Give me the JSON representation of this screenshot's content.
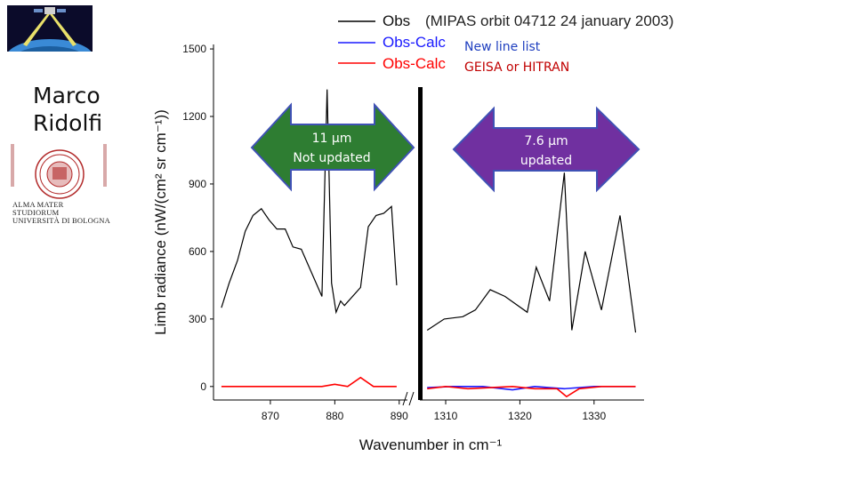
{
  "presenter": {
    "first": "Marco",
    "last": "Ridolfi"
  },
  "university": {
    "line1": "ALMA MATER STUDIORUM",
    "line2": "UNIVERSITÀ DI BOLOGNA"
  },
  "colors": {
    "obs": "#000000",
    "new": "#1a1aff",
    "old": "#ff0000",
    "green_arrow": "#2e7d32",
    "purple_arrow": "#7030a0"
  },
  "chart_data": {
    "type": "line",
    "title": "",
    "ylabel": "Limb radiance (nW/(cm² sr cm⁻¹))",
    "xlabel": "Wavenumber in cm⁻¹",
    "ylim": [
      -60,
      1520
    ],
    "yticks": [
      0,
      300,
      600,
      900,
      1200,
      1500
    ],
    "x_break": true,
    "left_panel": {
      "xlim": [
        862,
        891
      ],
      "xticks": [
        870,
        880,
        890
      ]
    },
    "right_panel": {
      "xlim": [
        1307,
        1336.5
      ],
      "xticks": [
        1310,
        1320,
        1330
      ]
    },
    "legend": {
      "position": "top-right",
      "entries": [
        {
          "label": "Obs",
          "extra": "(MIPAS orbit 04712 24 january 2003)",
          "extra_color": "#222222"
        },
        {
          "label": "Obs-Calc",
          "extra": "New line list",
          "extra_color": "#1f3fbf"
        },
        {
          "label": "Obs-Calc",
          "extra": "GEISA or HITRAN",
          "extra_color": "#c00000"
        }
      ]
    },
    "annotations": [
      {
        "text1": "11 µm",
        "text2": "Not updated"
      },
      {
        "text1": "7.6  µm",
        "text2": "updated"
      }
    ],
    "series": [
      {
        "name": "Obs",
        "panel": "left",
        "x": [
          862.4,
          863.6,
          864.9,
          866.1,
          867.3,
          868.6,
          869.8,
          871.0,
          872.3,
          873.5,
          874.8,
          878.0,
          878.8,
          879.5,
          880.2,
          880.9,
          881.5,
          884.0,
          885.2,
          886.4,
          887.6,
          888.8,
          889.6
        ],
        "y": [
          350,
          460,
          560,
          690,
          760,
          790,
          740,
          700,
          700,
          620,
          610,
          400,
          1320,
          460,
          330,
          380,
          360,
          440,
          710,
          760,
          770,
          800,
          450
        ]
      },
      {
        "name": "Obs",
        "panel": "right",
        "x": [
          1307.5,
          1309.8,
          1312.3,
          1314.0,
          1316.0,
          1318.0,
          1321.0,
          1322.2,
          1324.0,
          1326.0,
          1327.0,
          1328.8,
          1331.0,
          1333.5,
          1335.6
        ],
        "y": [
          250,
          300,
          310,
          340,
          430,
          400,
          330,
          530,
          380,
          950,
          250,
          600,
          340,
          760,
          240
        ]
      },
      {
        "name": "Obs-Calc (GEISA or HITRAN)",
        "panel": "left",
        "x": [
          862.4,
          866,
          870,
          874.8,
          878,
          880,
          882,
          884,
          886,
          888,
          889.6
        ],
        "y": [
          0,
          0,
          0,
          0,
          0,
          10,
          0,
          40,
          0,
          0,
          0
        ]
      },
      {
        "name": "Obs-Calc (GEISA or HITRAN)",
        "panel": "right",
        "x": [
          1307.5,
          1310,
          1313,
          1316,
          1319,
          1322,
          1325,
          1326.3,
          1328,
          1331,
          1335.6
        ],
        "y": [
          -10,
          0,
          -10,
          -5,
          0,
          -10,
          -10,
          -45,
          -10,
          0,
          0
        ]
      },
      {
        "name": "Obs-Calc (New line list)",
        "panel": "right",
        "x": [
          1307.5,
          1311,
          1315,
          1319,
          1322,
          1326,
          1330,
          1335.6
        ],
        "y": [
          -5,
          0,
          0,
          -15,
          0,
          -10,
          0,
          0
        ]
      }
    ]
  }
}
